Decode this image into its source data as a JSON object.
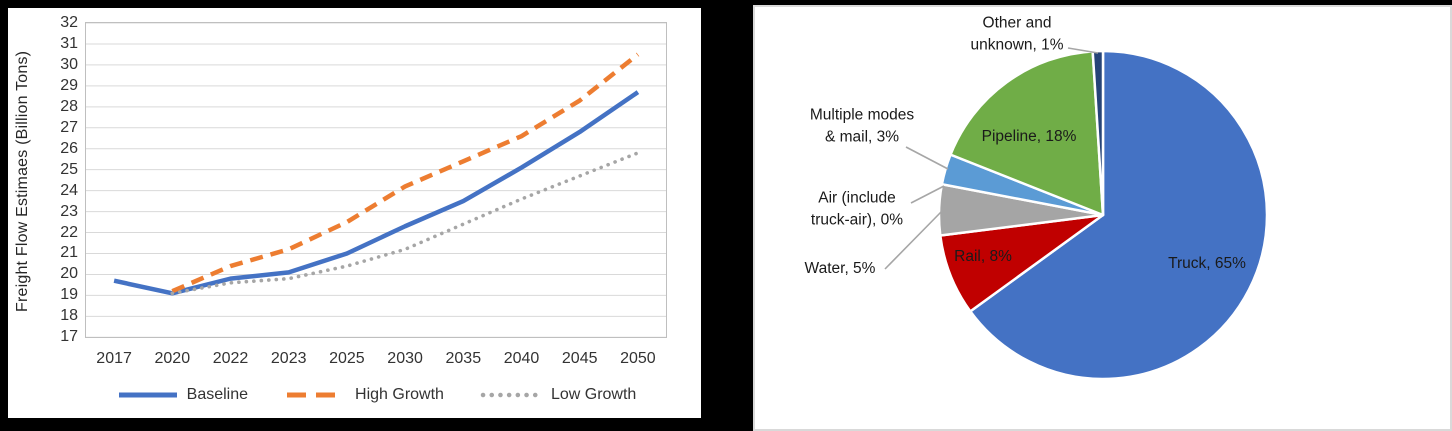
{
  "canvas": {
    "background": "#000000",
    "card_background": "#ffffff",
    "card_border": "#d9d9d9"
  },
  "chart_data": [
    {
      "type": "line",
      "title": "",
      "xlabel": "",
      "ylabel": "Freight Flow Estimaes (Billion Tons)",
      "categories": [
        "2017",
        "2020",
        "2022",
        "2023",
        "2025",
        "2030",
        "2035",
        "2040",
        "2045",
        "2050"
      ],
      "ylim": [
        17,
        32
      ],
      "ytick_step": 1,
      "grid": true,
      "gridline_color": "#d9d9d9",
      "plot_border_color": "#bfbfbf",
      "legend_position": "bottom",
      "series": [
        {
          "name": "Baseline",
          "color": "#4472C4",
          "style": "solid",
          "values": [
            19.7,
            19.1,
            19.8,
            20.1,
            21.0,
            22.3,
            23.5,
            25.1,
            26.8,
            28.7
          ]
        },
        {
          "name": "High Growth",
          "color": "#ED7D31",
          "style": "dashed",
          "values": [
            null,
            19.2,
            20.4,
            21.2,
            22.5,
            24.2,
            25.4,
            26.6,
            28.3,
            30.5
          ]
        },
        {
          "name": "Low Growth",
          "color": "#A6A6A6",
          "style": "dotted",
          "values": [
            null,
            19.1,
            19.6,
            19.8,
            20.4,
            21.2,
            22.4,
            23.6,
            24.7,
            25.8
          ]
        }
      ]
    },
    {
      "type": "pie",
      "title": "",
      "start_angle_deg": 0,
      "direction": "clockwise",
      "slice_border_color": "#ffffff",
      "leader_line_color": "#a6a6a6",
      "slices": [
        {
          "name": "Truck",
          "value": 65,
          "color": "#4472C4",
          "label": "Truck, 65%",
          "label_lines": [
            "Truck, 65%"
          ],
          "label_placement": "inside"
        },
        {
          "name": "Rail",
          "value": 8,
          "color": "#C00000",
          "label": "Rail, 8%",
          "label_lines": [
            "Rail, 8%"
          ],
          "label_placement": "inside"
        },
        {
          "name": "Water",
          "value": 5,
          "color": "#A5A5A5",
          "label": "Water, 5%",
          "label_lines": [
            "Water, 5%"
          ],
          "label_placement": "outside"
        },
        {
          "name": "Air (include truck-air)",
          "value": 0,
          "color": "#FFC000",
          "label": "Air (include truck-air), 0%",
          "label_lines": [
            "Air (include",
            "truck-air), 0%"
          ],
          "label_placement": "outside"
        },
        {
          "name": "Multiple modes & mail",
          "value": 3,
          "color": "#5B9BD5",
          "label": "Multiple modes & mail, 3%",
          "label_lines": [
            "Multiple modes",
            "& mail, 3%"
          ],
          "label_placement": "outside"
        },
        {
          "name": "Pipeline",
          "value": 18,
          "color": "#70AD47",
          "label": "Pipeline, 18%",
          "label_lines": [
            "Pipeline, 18%"
          ],
          "label_placement": "inside"
        },
        {
          "name": "Other and unknown",
          "value": 1,
          "color": "#264478",
          "label": "Other and unknown, 1%",
          "label_lines": [
            "Other and",
            "unknown, 1%"
          ],
          "label_placement": "outside"
        }
      ]
    }
  ]
}
